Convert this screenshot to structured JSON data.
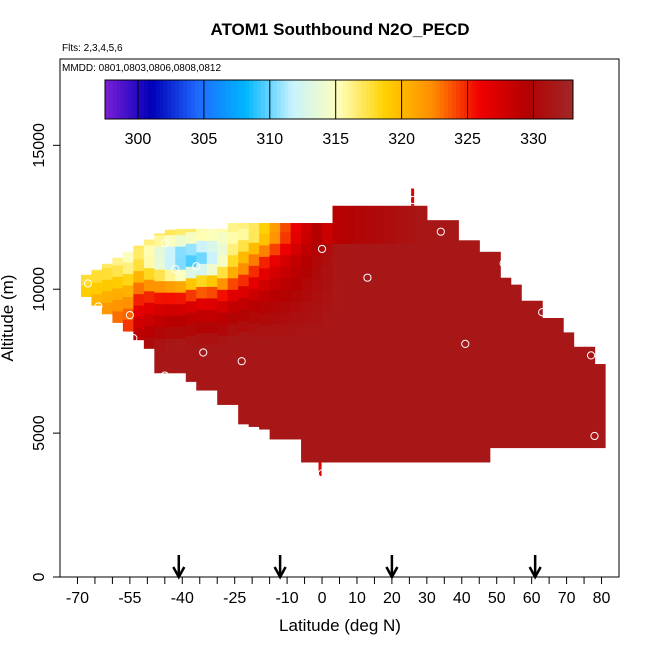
{
  "chart_data": {
    "type": "heatmap",
    "title": "ATOM1 Southbound N2O_PECD",
    "subtitle": "Flts: 2,3,4,5,6",
    "annotation": "MMDD: 0801,0803,0806,0808,0812",
    "xlabel": "Latitude (deg N)",
    "ylabel": "Altitude (m)",
    "xlim": [
      -75,
      85
    ],
    "ylim": [
      0,
      18000
    ],
    "x_ticks": [
      -70,
      -55,
      -40,
      -25,
      -10,
      0,
      10,
      20,
      30,
      40,
      50,
      60,
      70,
      80
    ],
    "x_tick_labels": [
      "-70",
      "-55",
      "-40",
      "-25",
      "-10",
      "0",
      "10",
      "20",
      "30",
      "40",
      "50",
      "60",
      "70",
      "80"
    ],
    "y_ticks": [
      0,
      5000,
      10000,
      15000
    ],
    "y_tick_labels": [
      "0",
      "5000",
      "10000",
      "15000"
    ],
    "colorbar": {
      "min": 297.5,
      "max": 333,
      "ticks": [
        300,
        305,
        310,
        315,
        320,
        325,
        330
      ],
      "tick_labels": [
        "300",
        "305",
        "310",
        "315",
        "320",
        "325",
        "330"
      ],
      "colors": [
        "#7a1fd6",
        "#0000b8",
        "#1e6bff",
        "#00b6ff",
        "#c8f2ff",
        "#ffffb8",
        "#ffd000",
        "#ff8c00",
        "#f00000",
        "#b40000",
        "#a02828"
      ]
    },
    "arrows_latitude": [
      -41,
      -12,
      20,
      61
    ],
    "observation_points": [
      {
        "lat": -67,
        "alt": 10200
      },
      {
        "lat": -64,
        "alt": 9400
      },
      {
        "lat": -55,
        "alt": 9100
      },
      {
        "lat": -54,
        "alt": 8300
      },
      {
        "lat": -45,
        "alt": 11600
      },
      {
        "lat": -42,
        "alt": 10700
      },
      {
        "lat": -36,
        "alt": 10800
      },
      {
        "lat": -34,
        "alt": 7800
      },
      {
        "lat": -45,
        "alt": 7000
      },
      {
        "lat": -23,
        "alt": 7500
      },
      {
        "lat": 0,
        "alt": 11400
      },
      {
        "lat": 13,
        "alt": 10400
      },
      {
        "lat": 26,
        "alt": 13100
      },
      {
        "lat": 34,
        "alt": 12000
      },
      {
        "lat": 41,
        "alt": 8100
      },
      {
        "lat": 52,
        "alt": 10900
      },
      {
        "lat": 63,
        "alt": 9200
      },
      {
        "lat": 77,
        "alt": 7700
      },
      {
        "lat": 78,
        "alt": 4900
      },
      {
        "lat": 0,
        "alt": 3600
      }
    ],
    "field_summary": {
      "dominant_value": 331,
      "low_value_region": {
        "lat_range": [
          -50,
          -15
        ],
        "alt_range": [
          10000,
          12500
        ],
        "min_value": 302
      }
    }
  }
}
